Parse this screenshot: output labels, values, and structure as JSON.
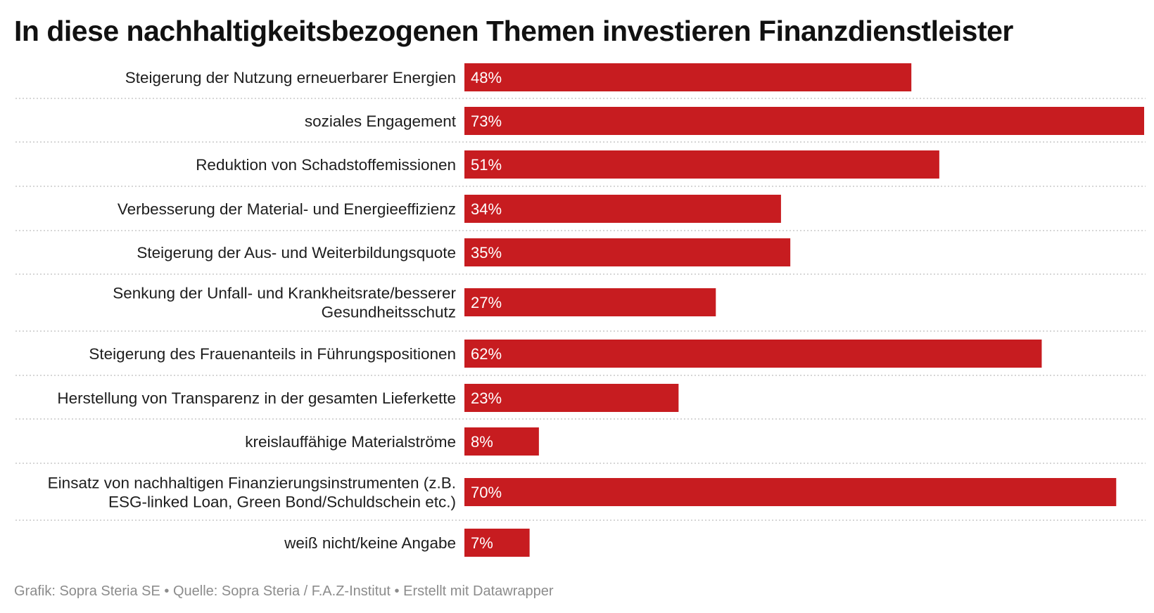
{
  "title": "In diese nachhaltigkeitsbezogenen Themen investieren Finanzdienstleister",
  "footer": "Grafik: Sopra Steria SE • Quelle: Sopra Steria / F.A.Z-Institut • Erstellt mit Datawrapper",
  "colors": {
    "bar": "#c71c20",
    "bar_label": "#ffffff",
    "category_label": "#1d1d1d",
    "separator": "#c8c8c8"
  },
  "chart_data": {
    "type": "bar",
    "orientation": "horizontal",
    "grid": false,
    "legend": "none",
    "xlim": [
      0,
      73
    ],
    "value_suffix": "%",
    "categories": [
      [
        "Steigerung der Nutzung erneuerbarer Energien"
      ],
      [
        "soziales Engagement"
      ],
      [
        "Reduktion von Schadstoffemissionen"
      ],
      [
        "Verbesserung der Material- und Energieeffizienz"
      ],
      [
        "Steigerung der Aus- und Weiterbildungsquote"
      ],
      [
        "Senkung der Unfall- und Krankheitsrate/besserer",
        "Gesundheitsschutz"
      ],
      [
        "Steigerung des Frauenanteils in Führungspositionen"
      ],
      [
        "Herstellung von Transparenz in der gesamten Lieferkette"
      ],
      [
        "kreislauffähige Materialströme"
      ],
      [
        "Einsatz von nachhaltigen Finanzierungsinstrumenten (z.B.",
        "ESG-linked Loan, Green Bond/Schuldschein etc.)"
      ],
      [
        "weiß nicht/keine Angabe"
      ]
    ],
    "values": [
      48,
      73,
      51,
      34,
      35,
      27,
      62,
      23,
      8,
      70,
      7
    ],
    "value_labels": [
      "48%",
      "73%",
      "51%",
      "34%",
      "35%",
      "27%",
      "62%",
      "23%",
      "8%",
      "70%",
      "7%"
    ]
  }
}
